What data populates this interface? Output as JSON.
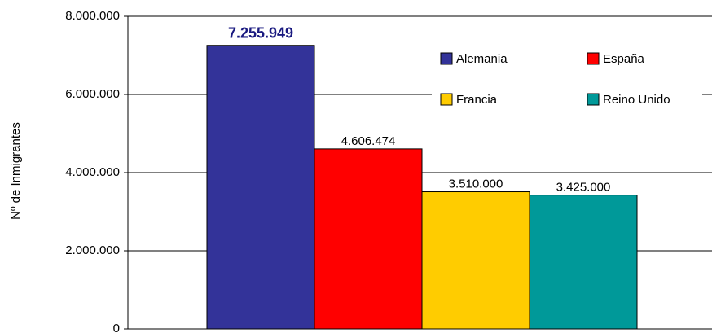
{
  "chart_data": {
    "type": "bar",
    "y_label": "Nº de Inmigrantes",
    "categories": [
      null
    ],
    "series": [
      {
        "name": "Alemania",
        "color": "#333399",
        "values": [
          7255949
        ],
        "value_labels": [
          "7.255.949"
        ]
      },
      {
        "name": "España",
        "color": "#ff0000",
        "values": [
          4606474
        ],
        "value_labels": [
          "4.606.474"
        ]
      },
      {
        "name": "Francia",
        "color": "#ffcc00",
        "values": [
          3510000
        ],
        "value_labels": [
          "3.510.000"
        ]
      },
      {
        "name": "Reino Unido",
        "color": "#009999",
        "values": [
          3425000
        ],
        "value_labels": [
          "3.425.000"
        ]
      }
    ],
    "ylim": [
      0,
      8000000
    ],
    "yticks": [
      0,
      {
        "value": 2000000,
        "label": "2.000.000"
      },
      {
        "value": 4000000,
        "label": "4.000.000"
      },
      {
        "value": 6000000,
        "label": "6.000.000"
      },
      {
        "value": 8000000,
        "label": "8.000.000"
      }
    ],
    "grid": true,
    "legend": "upper right"
  }
}
